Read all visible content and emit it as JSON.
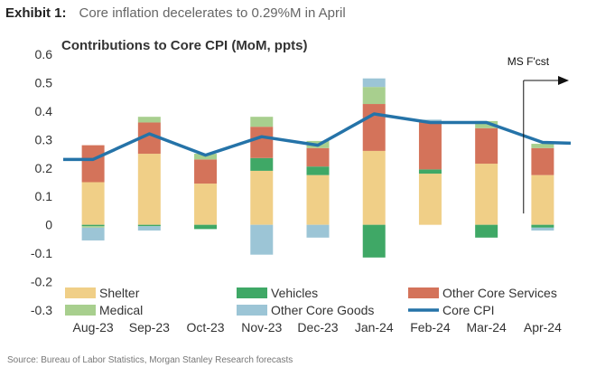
{
  "header": {
    "label": "Exhibit 1:",
    "title": "Core inflation decelerates to 0.29%M in April"
  },
  "source": "Source: Bureau of Labor Statistics, Morgan Stanley Research forecasts",
  "chart_data": {
    "type": "bar",
    "stacked": true,
    "title": "Contributions to Core CPI (MoM, ppts)",
    "categories": [
      "Aug-23",
      "Sep-23",
      "Oct-23",
      "Nov-23",
      "Dec-23",
      "Jan-24",
      "Feb-24",
      "Mar-24",
      "Apr-24"
    ],
    "ylim": [
      -0.3,
      0.6
    ],
    "yticks": [
      "-0.3",
      "-0.2",
      "-0.1",
      "0",
      "0.1",
      "0.2",
      "0.3",
      "0.4",
      "0.5",
      "0.6"
    ],
    "grid": false,
    "legend_position": "bottom",
    "series": [
      {
        "name": "Shelter",
        "kind": "bar",
        "color": "#F0CF87",
        "values": [
          0.15,
          0.25,
          0.145,
          0.19,
          0.175,
          0.26,
          0.18,
          0.215,
          0.175
        ]
      },
      {
        "name": "Vehicles",
        "kind": "bar",
        "color": "#3FA866",
        "values": [
          -0.005,
          -0.005,
          -0.015,
          0.045,
          0.03,
          -0.115,
          0.015,
          -0.045,
          -0.01
        ]
      },
      {
        "name": "Other Core Services",
        "kind": "bar",
        "color": "#D4735A",
        "values": [
          0.13,
          0.11,
          0.085,
          0.11,
          0.065,
          0.165,
          0.165,
          0.125,
          0.095
        ]
      },
      {
        "name": "Medical",
        "kind": "bar",
        "color": "#A8CF8E",
        "values": [
          -0.005,
          0.02,
          0.02,
          0.035,
          0.025,
          0.06,
          0.005,
          0.025,
          0.015
        ]
      },
      {
        "name": "Other Core Goods",
        "kind": "bar",
        "color": "#9CC5D6",
        "values": [
          -0.045,
          -0.015,
          0.0,
          -0.105,
          -0.045,
          0.03,
          0.005,
          0.0,
          -0.01
        ]
      },
      {
        "name": "Core CPI",
        "kind": "line",
        "color": "#2573A8",
        "values": [
          0.23,
          0.32,
          0.245,
          0.31,
          0.28,
          0.39,
          0.36,
          0.36,
          0.29
        ]
      }
    ],
    "annotations": [
      {
        "text": "MS F'cst",
        "category": "Apr-24"
      }
    ]
  }
}
